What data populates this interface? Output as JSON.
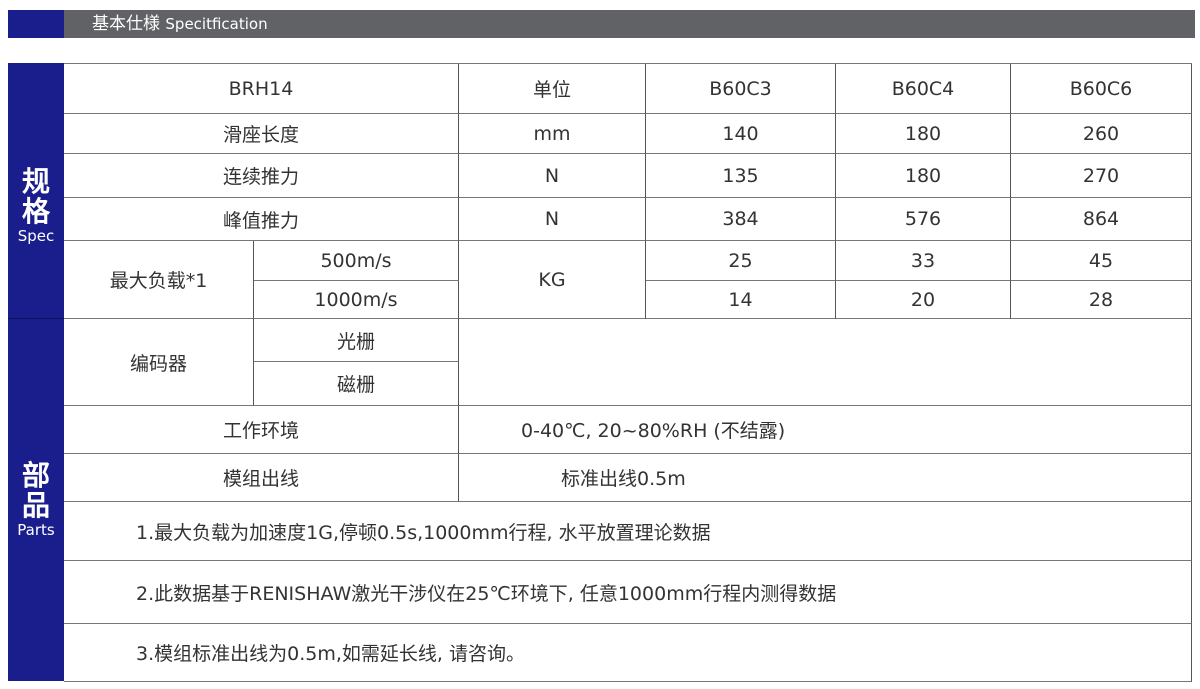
{
  "header": {
    "title_cn": "基本仕様",
    "title_en": "Specitfication"
  },
  "side": {
    "spec_cn_1": "规",
    "spec_cn_2": "格",
    "spec_en": "Spec",
    "parts_cn_1": "部",
    "parts_cn_2": "品",
    "parts_en": "Parts"
  },
  "table": {
    "model": "BRH14",
    "unit_label": "单位",
    "columns": [
      "B60C3",
      "B60C4",
      "B60C6"
    ],
    "rows": [
      {
        "label": "滑座长度",
        "unit": "mm",
        "values": [
          "140",
          "180",
          "260"
        ]
      },
      {
        "label": "连续推力",
        "unit": "N",
        "values": [
          "135",
          "180",
          "270"
        ]
      },
      {
        "label": "峰值推力",
        "unit": "N",
        "values": [
          "384",
          "576",
          "864"
        ]
      }
    ],
    "max_load": {
      "label": "最大负载*1",
      "unit": "KG",
      "sub": [
        {
          "label": "500m/s",
          "values": [
            "25",
            "33",
            "45"
          ]
        },
        {
          "label": "1000m/s",
          "values": [
            "14",
            "20",
            "28"
          ]
        }
      ]
    },
    "encoder": {
      "label": "编码器",
      "sub": [
        "光栅",
        "磁栅"
      ]
    },
    "environment": {
      "label": "工作环境",
      "value": "0-40℃, 20~80%RH (不结露)"
    },
    "cable": {
      "label": "模组出线",
      "value": "标准出线0.5m"
    },
    "notes": [
      "1.最大负载为加速度1G,停顿0.5s,1000mm行程, 水平放置理论数据",
      "2.此数据基于RENISHAW激光干涉仪在25℃环境下, 任意1000mm行程内测得数据",
      "3.模组标准出线为0.5m,如需延长线, 请咨询。"
    ]
  }
}
